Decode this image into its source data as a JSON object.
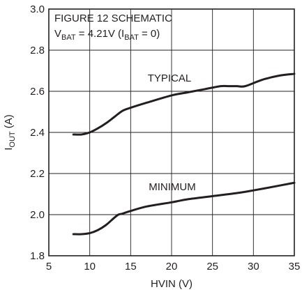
{
  "chart_data": {
    "type": "line",
    "xlabel": "HVIN (V)",
    "ylabel": {
      "base": "I",
      "sub": "OUT",
      "suffix": " (A)"
    },
    "xlim": [
      5,
      35
    ],
    "ylim": [
      1.8,
      3.0
    ],
    "x_ticks": [
      5,
      10,
      15,
      20,
      25,
      30,
      35
    ],
    "y_ticks": [
      "1.8",
      "2.0",
      "2.2",
      "2.4",
      "2.6",
      "2.8",
      "3.0"
    ],
    "grid": true,
    "annotation": {
      "line1": "FIGURE 12 SCHEMATIC",
      "line2": [
        {
          "text": "V",
          "sub": false
        },
        {
          "text": "BAT",
          "sub": true
        },
        {
          "text": " = 4.21V (I",
          "sub": false
        },
        {
          "text": "BAT",
          "sub": true
        },
        {
          "text": " = 0)",
          "sub": false
        }
      ]
    },
    "series": [
      {
        "name": "TYPICAL",
        "x": [
          8,
          9,
          10,
          11,
          12,
          13,
          14,
          15,
          17,
          20,
          22,
          24,
          26,
          27,
          28,
          29,
          31,
          33,
          35
        ],
        "y": [
          2.39,
          2.39,
          2.4,
          2.42,
          2.445,
          2.475,
          2.505,
          2.52,
          2.545,
          2.58,
          2.595,
          2.61,
          2.625,
          2.625,
          2.625,
          2.625,
          2.655,
          2.675,
          2.685
        ]
      },
      {
        "name": "MINIMUM",
        "x": [
          8,
          9,
          10,
          11,
          12,
          13,
          13.5,
          14,
          15,
          17,
          20,
          22,
          25,
          28,
          30,
          33,
          35
        ],
        "y": [
          1.905,
          1.905,
          1.91,
          1.925,
          1.95,
          1.985,
          2.0,
          2.005,
          2.018,
          2.04,
          2.06,
          2.075,
          2.09,
          2.105,
          2.118,
          2.14,
          2.155
        ]
      }
    ]
  }
}
